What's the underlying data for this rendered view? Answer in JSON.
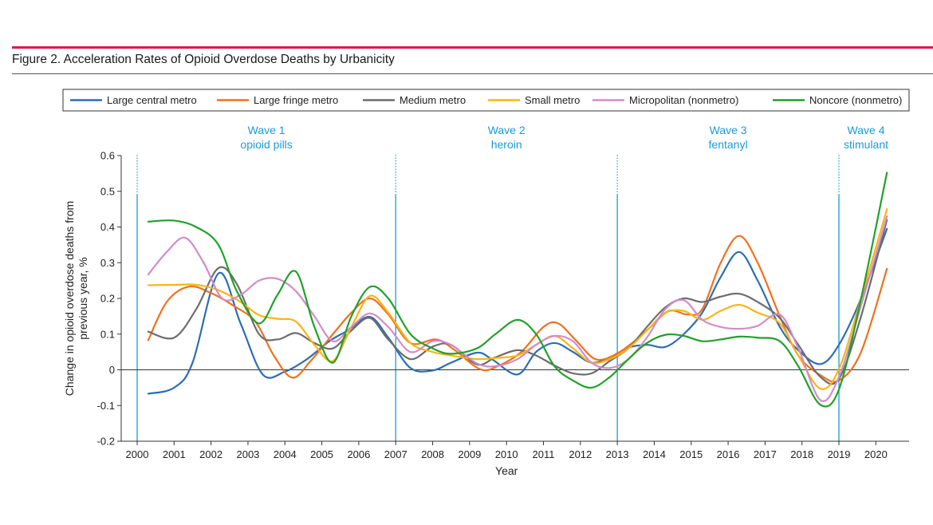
{
  "figure": {
    "title": "Figure 2. Acceleration Rates of Opioid Overdose Deaths by Urbanicity",
    "accent_color": "#e3154f",
    "wave_color": "#1a9bd7"
  },
  "chart_data": {
    "type": "line",
    "xlabel": "Year",
    "ylabel_lines": [
      "Change in opioid overdose deaths from",
      "previous year, %"
    ],
    "xlim": [
      2000,
      2020.5
    ],
    "ylim": [
      -0.2,
      0.6
    ],
    "xticks": [
      2000,
      2001,
      2002,
      2003,
      2004,
      2005,
      2006,
      2007,
      2008,
      2009,
      2010,
      2011,
      2012,
      2013,
      2014,
      2015,
      2016,
      2017,
      2018,
      2019,
      2020
    ],
    "yticks": [
      -0.2,
      -0.1,
      0,
      0.1,
      0.2,
      0.3,
      0.4,
      0.5,
      0.6
    ],
    "ytick_labels": [
      "-0.2",
      "-0.1",
      "0",
      "0.1",
      "0.2",
      "0.3",
      "0.4",
      "0.5",
      "0.6"
    ],
    "legend_position": "top",
    "waves": [
      {
        "x": 2000,
        "label": "Wave 1",
        "sublabel": "opioid pills"
      },
      {
        "x": 2007,
        "label": "Wave 2",
        "sublabel": "heroin"
      },
      {
        "x": 2013,
        "label": "Wave 3",
        "sublabel": "fentanyl"
      },
      {
        "x": 2019,
        "label": "Wave 4",
        "sublabel": "stimulant"
      }
    ],
    "series": [
      {
        "name": "Large central metro",
        "color": "#2e6db4",
        "points": [
          [
            2000.3,
            -0.067
          ],
          [
            2001.0,
            -0.05
          ],
          [
            2001.5,
            0.02
          ],
          [
            2002.2,
            0.27
          ],
          [
            2002.8,
            0.13
          ],
          [
            2003.4,
            -0.013
          ],
          [
            2004.0,
            -0.005
          ],
          [
            2004.6,
            0.03
          ],
          [
            2005.2,
            0.08
          ],
          [
            2005.7,
            0.11
          ],
          [
            2006.3,
            0.148
          ],
          [
            2006.8,
            0.09
          ],
          [
            2007.4,
            0.005
          ],
          [
            2008.0,
            -0.002
          ],
          [
            2008.5,
            0.02
          ],
          [
            2009.2,
            0.048
          ],
          [
            2009.6,
            0.03
          ],
          [
            2010.3,
            -0.013
          ],
          [
            2010.8,
            0.05
          ],
          [
            2011.3,
            0.075
          ],
          [
            2011.8,
            0.05
          ],
          [
            2012.3,
            0.02
          ],
          [
            2012.8,
            0.035
          ],
          [
            2013.3,
            0.062
          ],
          [
            2013.8,
            0.07
          ],
          [
            2014.3,
            0.064
          ],
          [
            2014.8,
            0.1
          ],
          [
            2015.3,
            0.16
          ],
          [
            2015.8,
            0.26
          ],
          [
            2016.3,
            0.33
          ],
          [
            2016.8,
            0.25
          ],
          [
            2017.4,
            0.12
          ],
          [
            2017.9,
            0.055
          ],
          [
            2018.5,
            0.016
          ],
          [
            2019.0,
            0.07
          ],
          [
            2019.6,
            0.2
          ],
          [
            2020.3,
            0.395
          ]
        ]
      },
      {
        "name": "Large fringe metro",
        "color": "#f0711f",
        "points": [
          [
            2000.3,
            0.083
          ],
          [
            2000.8,
            0.19
          ],
          [
            2001.4,
            0.233
          ],
          [
            2002.0,
            0.215
          ],
          [
            2002.6,
            0.18
          ],
          [
            2003.2,
            0.135
          ],
          [
            2003.7,
            0.04
          ],
          [
            2004.2,
            -0.022
          ],
          [
            2004.7,
            0.025
          ],
          [
            2005.3,
            0.1
          ],
          [
            2005.8,
            0.16
          ],
          [
            2006.3,
            0.2
          ],
          [
            2006.8,
            0.155
          ],
          [
            2007.4,
            0.075
          ],
          [
            2008.1,
            0.085
          ],
          [
            2008.6,
            0.055
          ],
          [
            2009.3,
            0.001
          ],
          [
            2009.8,
            0.012
          ],
          [
            2010.4,
            0.05
          ],
          [
            2011.0,
            0.12
          ],
          [
            2011.4,
            0.13
          ],
          [
            2011.9,
            0.08
          ],
          [
            2012.4,
            0.03
          ],
          [
            2012.9,
            0.04
          ],
          [
            2013.4,
            0.075
          ],
          [
            2013.9,
            0.12
          ],
          [
            2014.4,
            0.165
          ],
          [
            2014.9,
            0.155
          ],
          [
            2015.3,
            0.17
          ],
          [
            2015.8,
            0.3
          ],
          [
            2016.3,
            0.375
          ],
          [
            2016.8,
            0.3
          ],
          [
            2017.4,
            0.15
          ],
          [
            2017.9,
            0.04
          ],
          [
            2018.5,
            -0.015
          ],
          [
            2019.0,
            -0.03
          ],
          [
            2019.6,
            0.05
          ],
          [
            2020.3,
            0.283
          ]
        ]
      },
      {
        "name": "Medium metro",
        "color": "#6d6d6d",
        "points": [
          [
            2000.3,
            0.107
          ],
          [
            2001.0,
            0.09
          ],
          [
            2001.6,
            0.17
          ],
          [
            2002.2,
            0.285
          ],
          [
            2002.7,
            0.24
          ],
          [
            2003.3,
            0.1
          ],
          [
            2003.8,
            0.085
          ],
          [
            2004.3,
            0.103
          ],
          [
            2004.8,
            0.075
          ],
          [
            2005.3,
            0.06
          ],
          [
            2005.8,
            0.11
          ],
          [
            2006.3,
            0.145
          ],
          [
            2006.8,
            0.085
          ],
          [
            2007.4,
            0.03
          ],
          [
            2008.0,
            0.065
          ],
          [
            2008.5,
            0.07
          ],
          [
            2009.2,
            0.015
          ],
          [
            2009.7,
            0.035
          ],
          [
            2010.3,
            0.055
          ],
          [
            2010.8,
            0.04
          ],
          [
            2011.3,
            0.012
          ],
          [
            2011.8,
            -0.01
          ],
          [
            2012.3,
            -0.01
          ],
          [
            2012.8,
            0.025
          ],
          [
            2013.3,
            0.06
          ],
          [
            2013.8,
            0.12
          ],
          [
            2014.3,
            0.175
          ],
          [
            2014.8,
            0.2
          ],
          [
            2015.3,
            0.19
          ],
          [
            2015.8,
            0.205
          ],
          [
            2016.3,
            0.213
          ],
          [
            2016.8,
            0.19
          ],
          [
            2017.4,
            0.145
          ],
          [
            2017.9,
            0.07
          ],
          [
            2018.5,
            -0.02
          ],
          [
            2019.0,
            -0.025
          ],
          [
            2019.6,
            0.15
          ],
          [
            2020.3,
            0.42
          ]
        ]
      },
      {
        "name": "Small metro",
        "color": "#f7b515",
        "points": [
          [
            2000.3,
            0.237
          ],
          [
            2001.0,
            0.238
          ],
          [
            2001.6,
            0.238
          ],
          [
            2002.2,
            0.223
          ],
          [
            2002.8,
            0.19
          ],
          [
            2003.3,
            0.153
          ],
          [
            2003.8,
            0.143
          ],
          [
            2004.3,
            0.135
          ],
          [
            2004.8,
            0.07
          ],
          [
            2005.3,
            0.025
          ],
          [
            2005.8,
            0.12
          ],
          [
            2006.3,
            0.207
          ],
          [
            2006.8,
            0.16
          ],
          [
            2007.4,
            0.075
          ],
          [
            2008.0,
            0.05
          ],
          [
            2008.5,
            0.04
          ],
          [
            2009.2,
            0.03
          ],
          [
            2009.7,
            0.033
          ],
          [
            2010.3,
            0.04
          ],
          [
            2010.8,
            0.07
          ],
          [
            2011.3,
            0.095
          ],
          [
            2011.8,
            0.06
          ],
          [
            2012.3,
            0.02
          ],
          [
            2012.8,
            0.03
          ],
          [
            2013.3,
            0.06
          ],
          [
            2013.8,
            0.11
          ],
          [
            2014.3,
            0.16
          ],
          [
            2014.8,
            0.165
          ],
          [
            2015.3,
            0.14
          ],
          [
            2015.8,
            0.165
          ],
          [
            2016.3,
            0.182
          ],
          [
            2016.8,
            0.16
          ],
          [
            2017.4,
            0.13
          ],
          [
            2017.9,
            0.04
          ],
          [
            2018.5,
            -0.053
          ],
          [
            2019.0,
            0.002
          ],
          [
            2019.6,
            0.2
          ],
          [
            2020.3,
            0.45
          ]
        ]
      },
      {
        "name": "Micropolitan (nonmetro)",
        "color": "#d38cc8",
        "points": [
          [
            2000.3,
            0.267
          ],
          [
            2000.8,
            0.33
          ],
          [
            2001.3,
            0.37
          ],
          [
            2001.8,
            0.3
          ],
          [
            2002.3,
            0.2
          ],
          [
            2002.8,
            0.21
          ],
          [
            2003.3,
            0.25
          ],
          [
            2003.8,
            0.255
          ],
          [
            2004.3,
            0.22
          ],
          [
            2004.8,
            0.15
          ],
          [
            2005.3,
            0.08
          ],
          [
            2005.8,
            0.12
          ],
          [
            2006.3,
            0.158
          ],
          [
            2006.8,
            0.12
          ],
          [
            2007.4,
            0.05
          ],
          [
            2008.0,
            0.08
          ],
          [
            2008.5,
            0.07
          ],
          [
            2009.2,
            0.018
          ],
          [
            2009.7,
            0.01
          ],
          [
            2010.3,
            0.03
          ],
          [
            2010.8,
            0.07
          ],
          [
            2011.3,
            0.095
          ],
          [
            2011.8,
            0.08
          ],
          [
            2012.3,
            0.02
          ],
          [
            2012.8,
            0.005
          ],
          [
            2013.3,
            0.03
          ],
          [
            2013.8,
            0.09
          ],
          [
            2014.3,
            0.17
          ],
          [
            2014.8,
            0.195
          ],
          [
            2015.3,
            0.14
          ],
          [
            2015.8,
            0.12
          ],
          [
            2016.3,
            0.115
          ],
          [
            2016.8,
            0.123
          ],
          [
            2017.4,
            0.155
          ],
          [
            2017.9,
            0.06
          ],
          [
            2018.5,
            -0.085
          ],
          [
            2019.0,
            -0.02
          ],
          [
            2019.6,
            0.18
          ],
          [
            2020.3,
            0.43
          ]
        ]
      },
      {
        "name": "Noncore (nonmetro)",
        "color": "#21a12a",
        "points": [
          [
            2000.3,
            0.415
          ],
          [
            2001.0,
            0.418
          ],
          [
            2001.6,
            0.4
          ],
          [
            2002.2,
            0.35
          ],
          [
            2002.7,
            0.22
          ],
          [
            2003.3,
            0.13
          ],
          [
            2003.8,
            0.21
          ],
          [
            2004.3,
            0.275
          ],
          [
            2004.8,
            0.12
          ],
          [
            2005.3,
            0.02
          ],
          [
            2005.8,
            0.15
          ],
          [
            2006.3,
            0.232
          ],
          [
            2006.8,
            0.2
          ],
          [
            2007.4,
            0.1
          ],
          [
            2008.0,
            0.06
          ],
          [
            2008.5,
            0.045
          ],
          [
            2009.2,
            0.06
          ],
          [
            2009.7,
            0.1
          ],
          [
            2010.3,
            0.14
          ],
          [
            2010.8,
            0.1
          ],
          [
            2011.3,
            0.01
          ],
          [
            2011.8,
            -0.03
          ],
          [
            2012.3,
            -0.05
          ],
          [
            2012.8,
            -0.02
          ],
          [
            2013.3,
            0.03
          ],
          [
            2013.8,
            0.075
          ],
          [
            2014.3,
            0.098
          ],
          [
            2014.8,
            0.095
          ],
          [
            2015.3,
            0.08
          ],
          [
            2015.8,
            0.085
          ],
          [
            2016.3,
            0.093
          ],
          [
            2016.8,
            0.09
          ],
          [
            2017.4,
            0.08
          ],
          [
            2017.9,
            0.01
          ],
          [
            2018.5,
            -0.098
          ],
          [
            2019.0,
            -0.055
          ],
          [
            2019.6,
            0.2
          ],
          [
            2020.3,
            0.552
          ]
        ]
      }
    ]
  }
}
